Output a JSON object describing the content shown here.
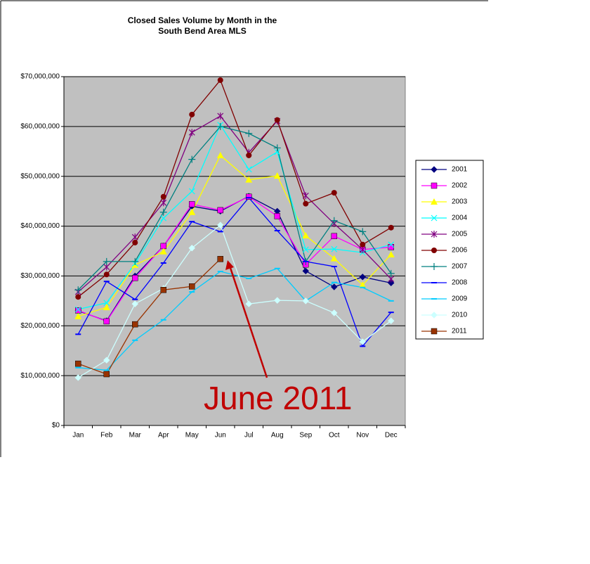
{
  "chart_data": {
    "type": "line",
    "title": [
      "Closed Sales Volume by Month in the",
      "South Bend Area MLS"
    ],
    "annotation": "June 2011",
    "categories": [
      "Jan",
      "Feb",
      "Mar",
      "Apr",
      "May",
      "Jun",
      "Jul",
      "Aug",
      "Sep",
      "Oct",
      "Nov",
      "Dec"
    ],
    "ylim": [
      0,
      70000000
    ],
    "yticks": [
      {
        "value": 0,
        "label": "$0"
      },
      {
        "value": 10000000,
        "label": "$10,000,000"
      },
      {
        "value": 20000000,
        "label": "$20,000,000"
      },
      {
        "value": 30000000,
        "label": "$30,000,000"
      },
      {
        "value": 40000000,
        "label": "$40,000,000"
      },
      {
        "value": 50000000,
        "label": "$50,000,000"
      },
      {
        "value": 60000000,
        "label": "$60,000,000"
      },
      {
        "value": 70000000,
        "label": "$70,000,000"
      }
    ],
    "grid": true,
    "legend": "right",
    "series": [
      {
        "name": "2001",
        "color": "#000080",
        "marker": "diamond",
        "values": [
          23000000,
          21000000,
          30000000,
          36000000,
          44000000,
          43000000,
          46000000,
          43000000,
          31000000,
          27800000,
          29800000,
          28600000
        ]
      },
      {
        "name": "2002",
        "color": "#ff00ff",
        "marker": "square",
        "values": [
          23100000,
          20900000,
          29600000,
          36000000,
          44400000,
          43200000,
          45900000,
          42000000,
          32300000,
          38000000,
          35300000,
          35800000
        ]
      },
      {
        "name": "2003",
        "color": "#ffff00",
        "marker": "triangle",
        "values": [
          21900000,
          23700000,
          32200000,
          34900000,
          42800000,
          54200000,
          49300000,
          50100000,
          38100000,
          33500000,
          28200000,
          34300000
        ]
      },
      {
        "name": "2004",
        "color": "#00ffff",
        "marker": "x",
        "values": [
          23300000,
          24600000,
          32500000,
          41600000,
          47000000,
          60300000,
          51400000,
          54900000,
          35300000,
          35400000,
          34700000,
          36300000
        ]
      },
      {
        "name": "2005",
        "color": "#800080",
        "marker": "star",
        "values": [
          26800000,
          31800000,
          37800000,
          44700000,
          58800000,
          62100000,
          54800000,
          61100000,
          46100000,
          40500000,
          35300000,
          29400000
        ]
      },
      {
        "name": "2006",
        "color": "#800000",
        "marker": "circle",
        "values": [
          25800000,
          30300000,
          36700000,
          45900000,
          62400000,
          69300000,
          54200000,
          61300000,
          44500000,
          46700000,
          36300000,
          39700000
        ]
      },
      {
        "name": "2007",
        "color": "#008080",
        "marker": "plus",
        "values": [
          27200000,
          32900000,
          32900000,
          42800000,
          53400000,
          60000000,
          58600000,
          55700000,
          32900000,
          41100000,
          38900000,
          30500000
        ]
      },
      {
        "name": "2008",
        "color": "#0000ff",
        "marker": "dash",
        "values": [
          18300000,
          28900000,
          25300000,
          32600000,
          40900000,
          38900000,
          45700000,
          39100000,
          32900000,
          31900000,
          15900000,
          22700000
        ]
      },
      {
        "name": "2009",
        "color": "#00ccff",
        "marker": "dash",
        "values": [
          11600000,
          11100000,
          17100000,
          21200000,
          26800000,
          30900000,
          29500000,
          31500000,
          25000000,
          28700000,
          27700000,
          25000000
        ]
      },
      {
        "name": "2010",
        "color": "#ccffff",
        "marker": "diamond",
        "values": [
          9600000,
          13100000,
          24400000,
          27500000,
          35600000,
          40200000,
          24400000,
          25100000,
          25000000,
          22600000,
          16800000,
          21000000
        ]
      },
      {
        "name": "2011",
        "color": "#993300",
        "marker": "square",
        "values": [
          12400000,
          10300000,
          20300000,
          27200000,
          27900000,
          33400000,
          null,
          null,
          null,
          null,
          null,
          null
        ]
      }
    ]
  }
}
